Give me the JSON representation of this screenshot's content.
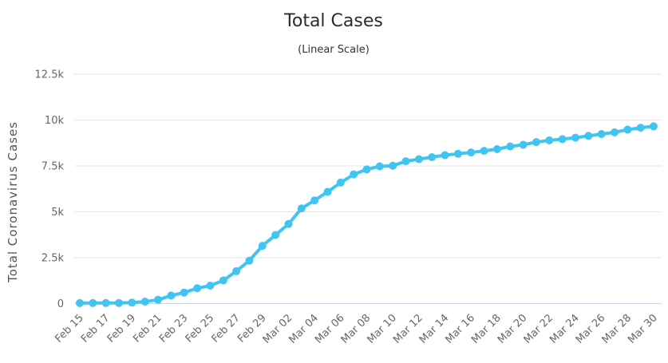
{
  "chart": {
    "title": "Total Cases",
    "subtitle": "(Linear Scale)",
    "y_axis_title": "Total Coronavirus Cases"
  },
  "colors": {
    "line": "#40c5f2",
    "marker": "#40c5f2",
    "grid": "#e6e6e6",
    "axis_line": "#ccd6eb",
    "title_text": "#2b2b33",
    "subtitle_text": "#333333",
    "axis_label": "#666666",
    "background": "#ffffff"
  },
  "chart_data": {
    "type": "line",
    "title": "Total Cases",
    "subtitle": "(Linear Scale)",
    "xlabel": "",
    "ylabel": "Total Coronavirus Cases",
    "x": [
      "Feb 15",
      "Feb 16",
      "Feb 17",
      "Feb 18",
      "Feb 19",
      "Feb 20",
      "Feb 21",
      "Feb 22",
      "Feb 23",
      "Feb 24",
      "Feb 25",
      "Feb 26",
      "Feb 27",
      "Feb 28",
      "Feb 29",
      "Mar 01",
      "Mar 02",
      "Mar 03",
      "Mar 04",
      "Mar 05",
      "Mar 06",
      "Mar 07",
      "Mar 08",
      "Mar 09",
      "Mar 10",
      "Mar 11",
      "Mar 12",
      "Mar 13",
      "Mar 14",
      "Mar 15",
      "Mar 16",
      "Mar 17",
      "Mar 18",
      "Mar 19",
      "Mar 20",
      "Mar 21",
      "Mar 22",
      "Mar 23",
      "Mar 24",
      "Mar 25",
      "Mar 26",
      "Mar 27",
      "Mar 28",
      "Mar 29",
      "Mar 30"
    ],
    "values": [
      28,
      29,
      30,
      31,
      51,
      104,
      204,
      433,
      602,
      833,
      977,
      1261,
      1766,
      2337,
      3150,
      3736,
      4335,
      5186,
      5621,
      6088,
      6593,
      7041,
      7314,
      7478,
      7513,
      7755,
      7869,
      7979,
      8086,
      8162,
      8236,
      8320,
      8413,
      8565,
      8652,
      8799,
      8897,
      8961,
      9037,
      9137,
      9241,
      9332,
      9478,
      9583,
      9661
    ],
    "x_tick_step": 2,
    "x_tick_labels": [
      "Feb 15",
      "Feb 17",
      "Feb 19",
      "Feb 21",
      "Feb 23",
      "Feb 25",
      "Feb 27",
      "Feb 29",
      "Mar 02",
      "Mar 04",
      "Mar 06",
      "Mar 08",
      "Mar 10",
      "Mar 12",
      "Mar 14",
      "Mar 16",
      "Mar 18",
      "Mar 20",
      "Mar 22",
      "Mar 24",
      "Mar 26",
      "Mar 28",
      "Mar 30"
    ],
    "ylim": [
      0,
      12500
    ],
    "y_ticks": [
      0,
      2500,
      5000,
      7500,
      10000,
      12500
    ],
    "y_tick_labels": [
      "0",
      "2.5k",
      "5k",
      "7.5k",
      "10k",
      "12.5k"
    ],
    "grid": true,
    "legend": false,
    "marker": "circle"
  }
}
